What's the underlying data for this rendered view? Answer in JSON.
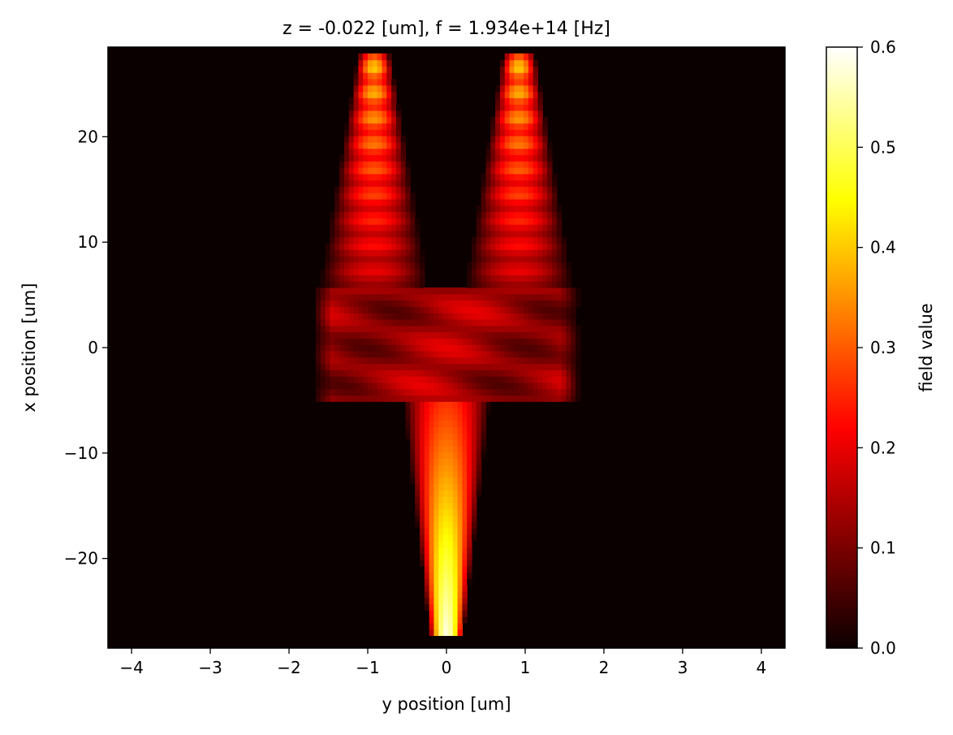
{
  "chart_data": {
    "type": "heatmap",
    "title": "z = -0.022 [um], f = 1.934e+14 [Hz]",
    "xlabel": "y position [um]",
    "ylabel": "x position [um]",
    "xlim": [
      -4.3,
      4.3
    ],
    "ylim": [
      -28.5,
      28.5
    ],
    "xticks": [
      -4,
      -3,
      -2,
      -1,
      0,
      1,
      2,
      3,
      4
    ],
    "xtick_labels": [
      "−4",
      "−3",
      "−2",
      "−1",
      "0",
      "1",
      "2",
      "3",
      "4"
    ],
    "yticks": [
      -20,
      -10,
      0,
      10,
      20
    ],
    "ytick_labels": [
      "−20",
      "−10",
      "0",
      "10",
      "20"
    ],
    "colormap": "hot",
    "colorbar": {
      "label": "field value",
      "range": [
        0.0,
        0.6
      ],
      "ticks": [
        0.0,
        0.1,
        0.2,
        0.3,
        0.4,
        0.5,
        0.6
      ],
      "tick_labels": [
        "0.0",
        "0.1",
        "0.2",
        "0.3",
        "0.4",
        "0.5",
        "0.6"
      ]
    },
    "features": [
      {
        "region": "input waveguide",
        "y_center": 0.0,
        "x_range": [
          -27,
          -5
        ],
        "peak_value": 0.58
      },
      {
        "region": "splitter junction",
        "y_range": [
          -1.7,
          1.7
        ],
        "x_range": [
          -5,
          6
        ],
        "peak_value": 0.2
      },
      {
        "region": "left output arm",
        "y_center": -0.92,
        "x_range": [
          6,
          28
        ],
        "peak_value": 0.42
      },
      {
        "region": "right output arm",
        "y_center": 0.92,
        "x_range": [
          6,
          28
        ],
        "peak_value": 0.42
      }
    ]
  }
}
